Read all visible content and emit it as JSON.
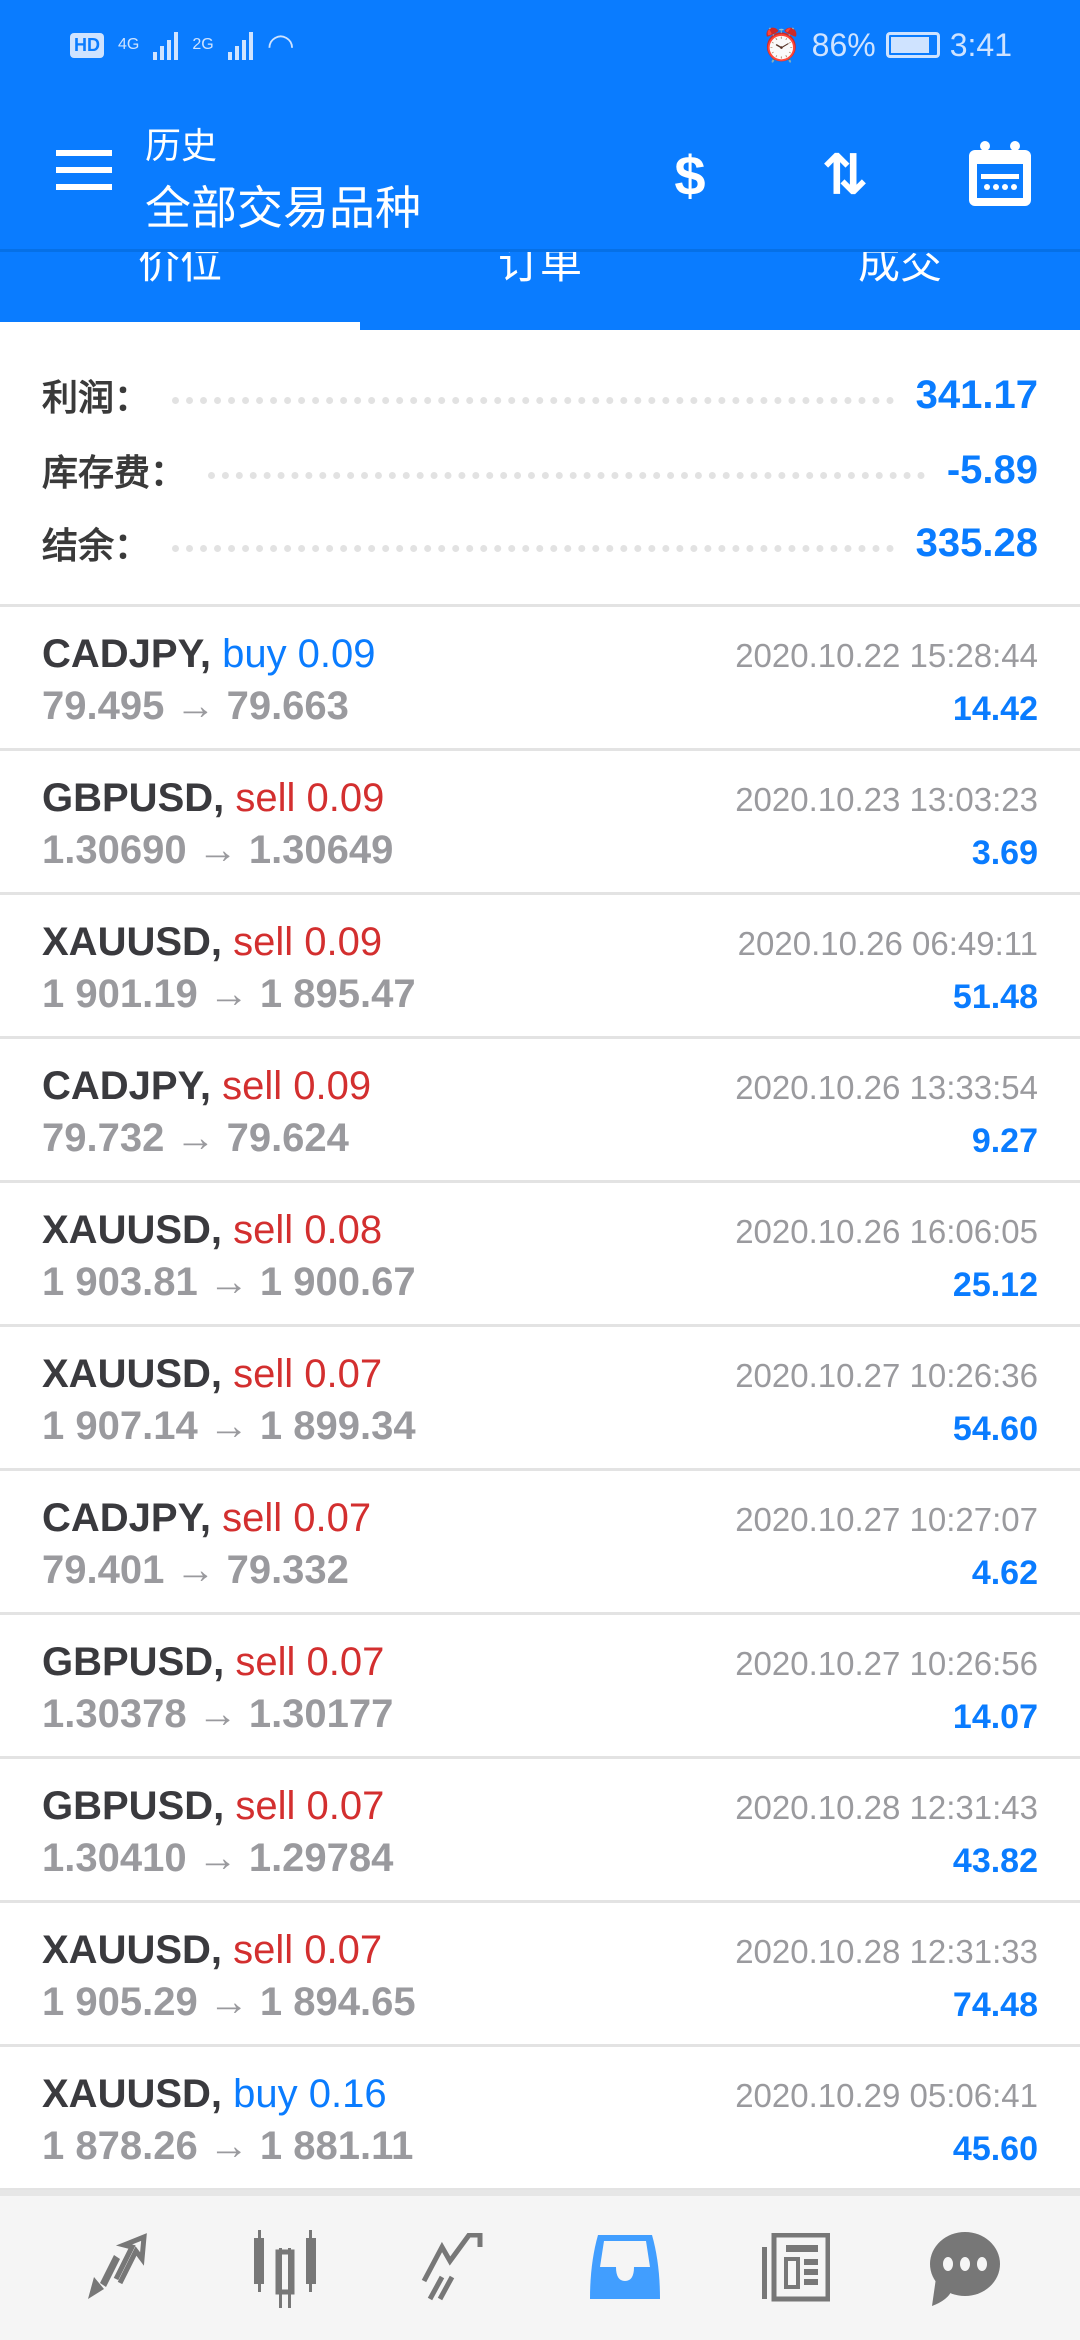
{
  "status_bar": {
    "network1": "4G",
    "network2": "2G",
    "battery": "86%",
    "battery_level": 0.86,
    "time": "3:41"
  },
  "header": {
    "title": "历史",
    "subtitle": "全部交易品种"
  },
  "tabs": [
    {
      "label": "价位",
      "active": true
    },
    {
      "label": "订单"
    },
    {
      "label": "成交"
    }
  ],
  "summary": [
    {
      "label": "利润：",
      "value": "341.17"
    },
    {
      "label": "库存费：",
      "value": "-5.89"
    },
    {
      "label": "结余：",
      "value": "335.28"
    }
  ],
  "colors": {
    "accent": "#0a7cff",
    "buy": "#0a7cff",
    "sell": "#d32f2f"
  },
  "trades": [
    {
      "symbol": "CADJPY,",
      "side": "buy 0.09",
      "type": "buy",
      "prices": "79.495 → 79.663",
      "time": "2020.10.22 15:28:44",
      "profit": "14.42"
    },
    {
      "symbol": "GBPUSD,",
      "side": "sell 0.09",
      "type": "sell",
      "prices": "1.30690 → 1.30649",
      "time": "2020.10.23 13:03:23",
      "profit": "3.69"
    },
    {
      "symbol": "XAUUSD,",
      "side": "sell 0.09",
      "type": "sell",
      "prices": "1 901.19 → 1 895.47",
      "time": "2020.10.26 06:49:11",
      "profit": "51.48"
    },
    {
      "symbol": "CADJPY,",
      "side": "sell 0.09",
      "type": "sell",
      "prices": "79.732 → 79.624",
      "time": "2020.10.26 13:33:54",
      "profit": "9.27"
    },
    {
      "symbol": "XAUUSD,",
      "side": "sell 0.08",
      "type": "sell",
      "prices": "1 903.81 → 1 900.67",
      "time": "2020.10.26 16:06:05",
      "profit": "25.12"
    },
    {
      "symbol": "XAUUSD,",
      "side": "sell 0.07",
      "type": "sell",
      "prices": "1 907.14 → 1 899.34",
      "time": "2020.10.27 10:26:36",
      "profit": "54.60"
    },
    {
      "symbol": "CADJPY,",
      "side": "sell 0.07",
      "type": "sell",
      "prices": "79.401 → 79.332",
      "time": "2020.10.27 10:27:07",
      "profit": "4.62"
    },
    {
      "symbol": "GBPUSD,",
      "side": "sell 0.07",
      "type": "sell",
      "prices": "1.30378 → 1.30177",
      "time": "2020.10.27 10:26:56",
      "profit": "14.07"
    },
    {
      "symbol": "GBPUSD,",
      "side": "sell 0.07",
      "type": "sell",
      "prices": "1.30410 → 1.29784",
      "time": "2020.10.28 12:31:43",
      "profit": "43.82"
    },
    {
      "symbol": "XAUUSD,",
      "side": "sell 0.07",
      "type": "sell",
      "prices": "1 905.29 → 1 894.65",
      "time": "2020.10.28 12:31:33",
      "profit": "74.48"
    },
    {
      "symbol": "XAUUSD,",
      "side": "buy 0.16",
      "type": "buy",
      "prices": "1 878.26 → 1 881.11",
      "time": "2020.10.29 05:06:41",
      "profit": "45.60"
    }
  ],
  "bottom_nav": [
    {
      "icon": "quotes-icon"
    },
    {
      "icon": "chart-icon"
    },
    {
      "icon": "trade-icon"
    },
    {
      "icon": "history-icon",
      "active": true
    },
    {
      "icon": "news-icon"
    },
    {
      "icon": "chat-icon"
    }
  ]
}
